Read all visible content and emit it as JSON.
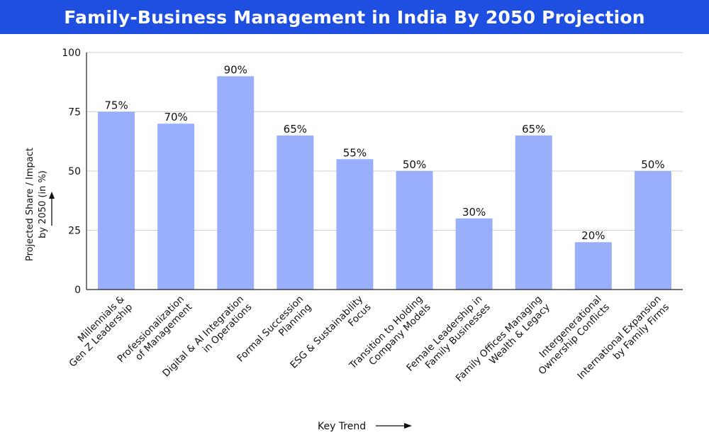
{
  "title": "Family-Business Management in India By 2050 Projection",
  "chart_data": {
    "type": "bar",
    "categories": [
      [
        "Millennials &",
        "Gen Z Leadership"
      ],
      [
        "Professionalization",
        "of Management"
      ],
      [
        "Digital & AI Integration",
        "in Operations"
      ],
      [
        "Formal Succession",
        "Planning"
      ],
      [
        "ESG & Sustainability",
        "Focus"
      ],
      [
        "Transition to Holding",
        "Company Models"
      ],
      [
        "Female Leadership in",
        "Family Businesses"
      ],
      [
        "Family Offices Managing",
        "Wealth & Legacy"
      ],
      [
        "Intergenerational",
        "Ownership Conflicts"
      ],
      [
        "International Expansion",
        "by Family Firms"
      ]
    ],
    "values": [
      75,
      70,
      90,
      65,
      55,
      50,
      30,
      65,
      20,
      50
    ],
    "data_labels": [
      "75%",
      "70%",
      "90%",
      "65%",
      "55%",
      "50%",
      "30%",
      "65%",
      "20%",
      "50%"
    ],
    "ylim": [
      0,
      100
    ],
    "yticks": [
      "0",
      "25",
      "50",
      "75",
      "100"
    ],
    "ylabel_lines": [
      "Projected Share / Impact",
      "by 2050 (in %)"
    ],
    "xlabel": "Key Trend",
    "grid": true,
    "colors": {
      "bar": "#9aaffb",
      "title_bg": "#1f4fe0",
      "grid": "#d0d0d0",
      "axis": "#222222"
    }
  }
}
